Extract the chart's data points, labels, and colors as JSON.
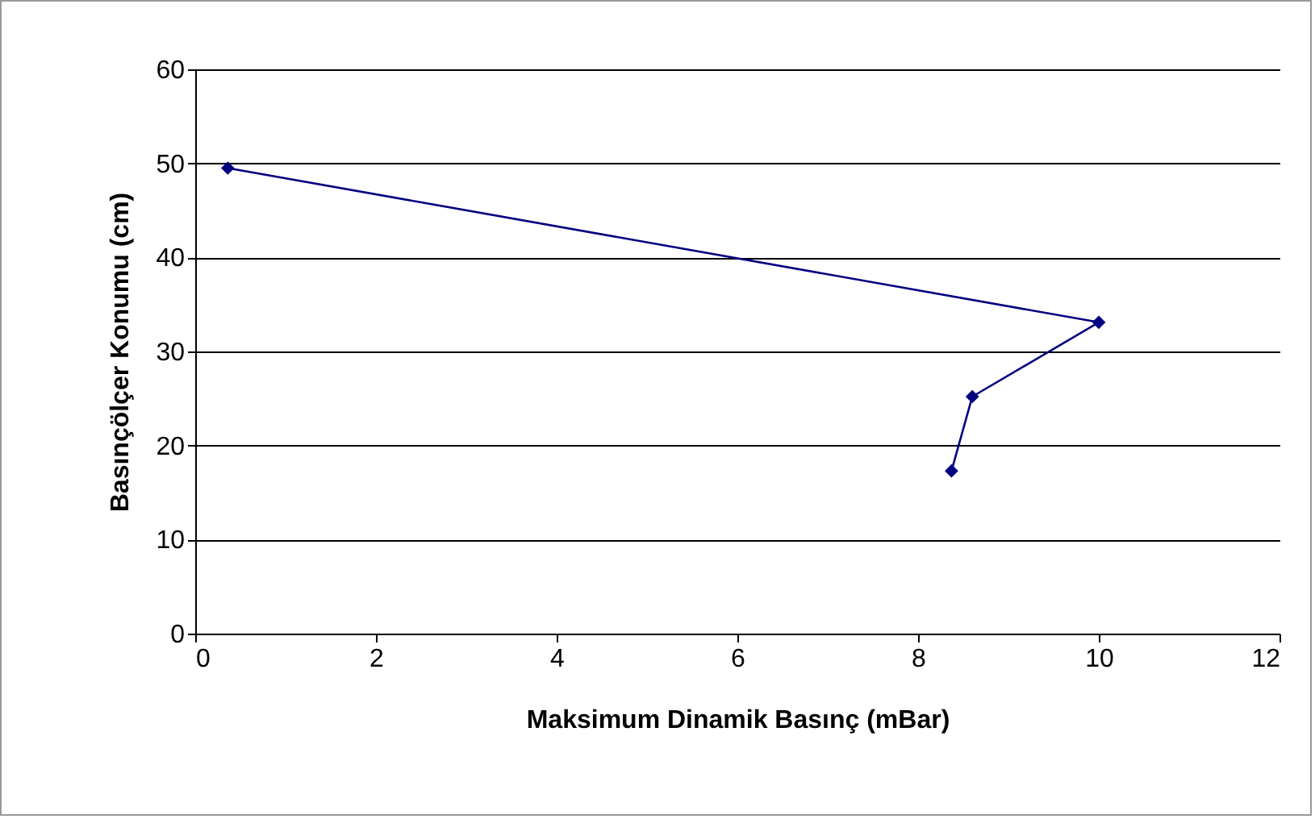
{
  "chart_data": {
    "type": "line",
    "xlabel": "Maksimum Dinamik Basınç (mBar)",
    "ylabel": "Basınçölçer Konumu (cm)",
    "x": [
      0.36,
      10.0,
      8.6,
      8.37
    ],
    "series": [
      {
        "color": "#000080",
        "values": [
          49.5,
          33.1,
          25.2,
          17.3
        ]
      }
    ],
    "xlim": [
      0,
      12
    ],
    "xticks": [
      0,
      2,
      4,
      6,
      8,
      10,
      12
    ],
    "ylim": [
      0,
      60
    ],
    "yticks": [
      0,
      10,
      20,
      30,
      40,
      50,
      60
    ],
    "grid": "y",
    "marker": "diamond",
    "line_style": "solid"
  }
}
